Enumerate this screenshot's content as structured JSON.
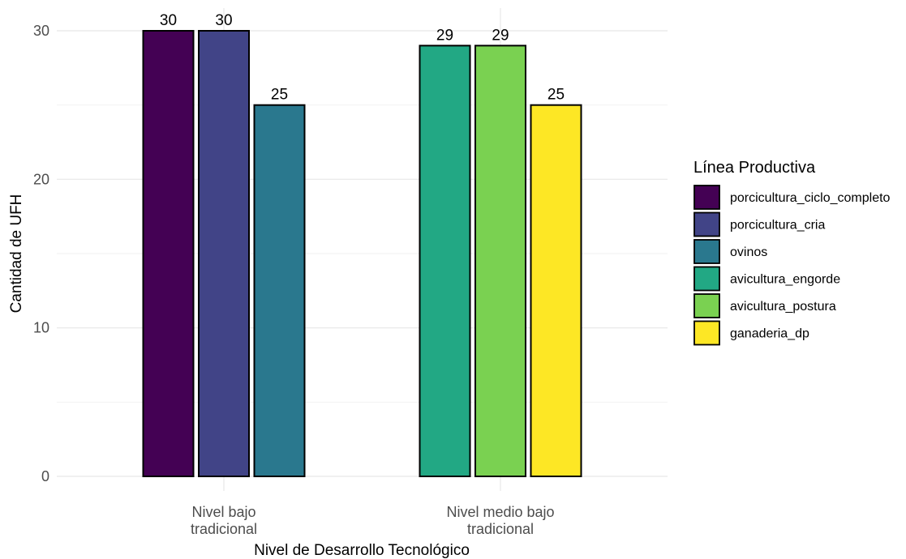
{
  "chart_data": {
    "type": "bar",
    "xlabel": "Nivel de Desarrollo Tecnológico",
    "ylabel": "Cantidad de UFH",
    "ylim": [
      0,
      30
    ],
    "yticks": [
      "0",
      "10",
      "20",
      "30"
    ],
    "grid": true,
    "legend_position": "right",
    "legend_title": "Línea Productiva",
    "legend": [
      {
        "name": "porcicultura_ciclo_completo",
        "color": "#440154"
      },
      {
        "name": "porcicultura_cria",
        "color": "#414487"
      },
      {
        "name": "ovinos",
        "color": "#2A788E"
      },
      {
        "name": "avicultura_engorde",
        "color": "#22A884"
      },
      {
        "name": "avicultura_postura",
        "color": "#7AD151"
      },
      {
        "name": "ganaderia_dp",
        "color": "#FDE725"
      }
    ],
    "groups": [
      {
        "category_lines": [
          "Nivel bajo",
          "tradicional"
        ],
        "bars": [
          {
            "series": "porcicultura_ciclo_completo",
            "value": 30,
            "label": "30"
          },
          {
            "series": "porcicultura_cria",
            "value": 30,
            "label": "30"
          },
          {
            "series": "ovinos",
            "value": 25,
            "label": "25"
          }
        ]
      },
      {
        "category_lines": [
          "Nivel medio bajo",
          "tradicional"
        ],
        "bars": [
          {
            "series": "avicultura_engorde",
            "value": 29,
            "label": "29"
          },
          {
            "series": "avicultura_postura",
            "value": 29,
            "label": "29"
          },
          {
            "series": "ganaderia_dp",
            "value": 25,
            "label": "25"
          }
        ]
      }
    ]
  }
}
